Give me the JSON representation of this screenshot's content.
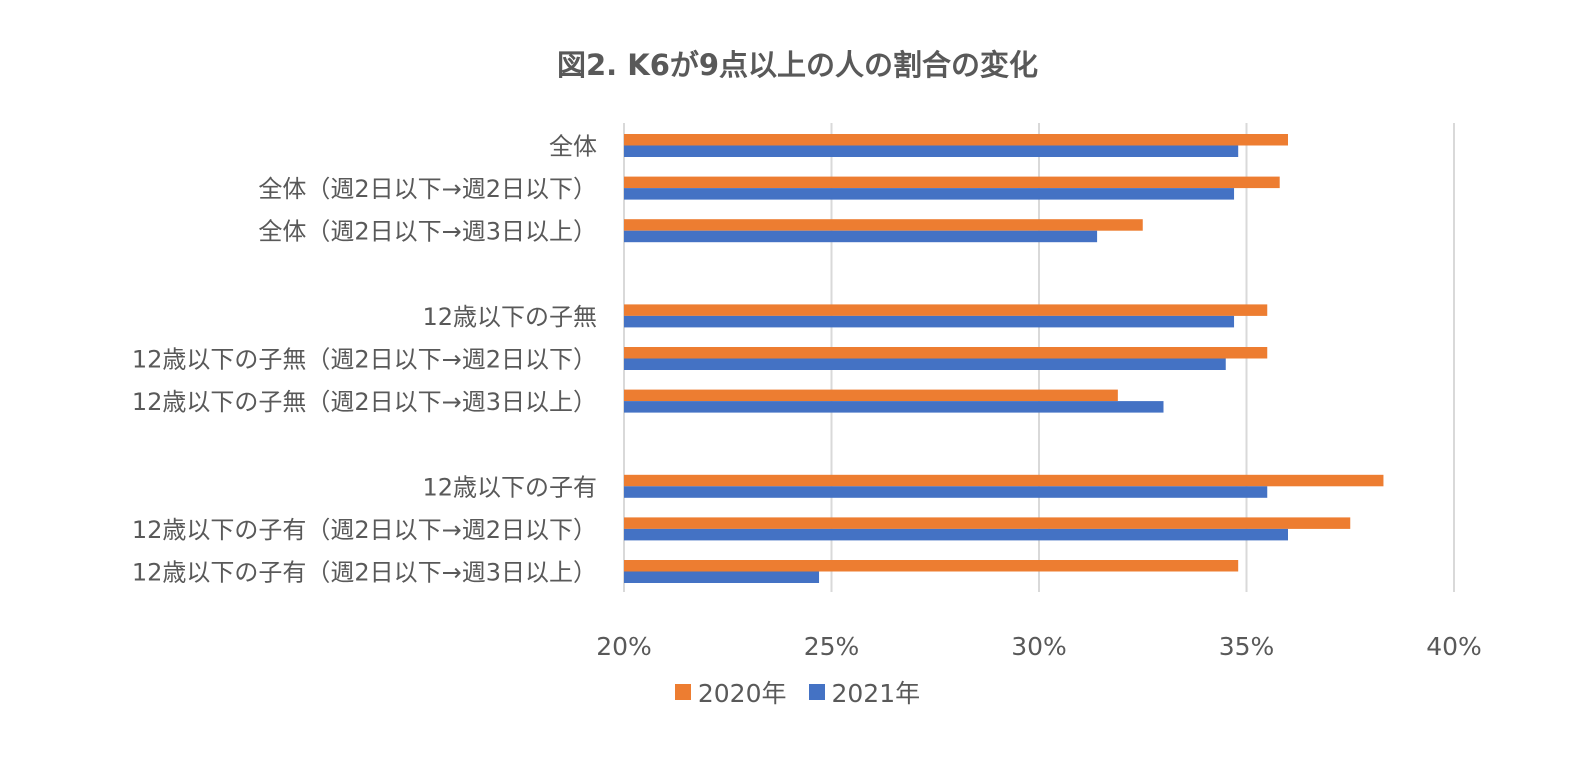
{
  "colors": {
    "series_2020": "#ED7D31",
    "series_2021": "#4472C4",
    "grid": "#D9D9D9",
    "text": "#595959"
  },
  "chart_data": {
    "type": "bar",
    "orientation": "horizontal",
    "title": "図2. K6が9点以上の人の割合の変化",
    "categories": [
      "全体",
      "全体（週2日以下→週2日以下）",
      "全体（週2日以下→週3日以上）",
      "",
      "12歳以下の子無",
      "12歳以下の子無（週2日以下→週2日以下）",
      "12歳以下の子無（週2日以下→週3日以上）",
      "",
      "12歳以下の子有",
      "12歳以下の子有（週2日以下→週2日以下）",
      "12歳以下の子有（週2日以下→週3日以上）"
    ],
    "series": [
      {
        "name": "2020年",
        "values": [
          36.0,
          35.8,
          32.5,
          null,
          35.5,
          35.5,
          31.9,
          null,
          38.3,
          37.5,
          34.8
        ]
      },
      {
        "name": "2021年",
        "values": [
          34.8,
          34.7,
          31.4,
          null,
          34.7,
          34.5,
          33.0,
          null,
          35.5,
          36.0,
          24.7
        ]
      }
    ],
    "xlim": [
      20,
      40
    ],
    "xticks": [
      "20%",
      "25%",
      "30%",
      "35%",
      "40%"
    ],
    "xtick_values": [
      20,
      25,
      30,
      35,
      40
    ],
    "grid": true,
    "legend_position": "bottom"
  }
}
